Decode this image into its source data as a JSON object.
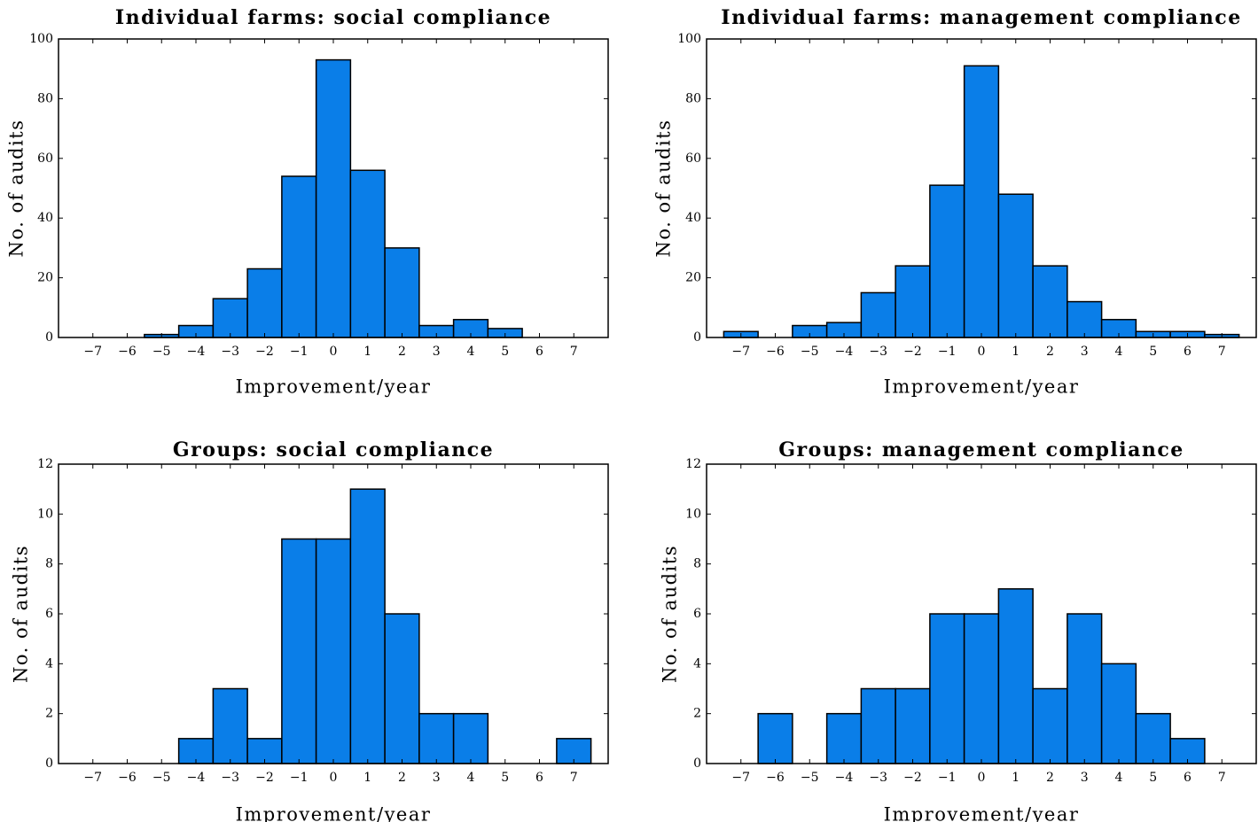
{
  "chart_data": [
    {
      "type": "bar",
      "title": "Individual farms: social compliance",
      "xlabel": "Improvement/year",
      "ylabel": "No. of audits",
      "x": [
        -7,
        -6,
        -5,
        -4,
        -3,
        -2,
        -1,
        0,
        1,
        2,
        3,
        4,
        5,
        6,
        7
      ],
      "values": [
        0,
        0,
        1,
        4,
        13,
        23,
        54,
        93,
        56,
        30,
        4,
        6,
        3,
        0,
        0
      ],
      "xticks": [
        "−7",
        "−6",
        "−5",
        "−4",
        "−3",
        "−2",
        "−1",
        "0",
        "1",
        "2",
        "3",
        "4",
        "5",
        "6",
        "7"
      ],
      "yticks": [
        "0",
        "20",
        "40",
        "60",
        "80",
        "100"
      ],
      "ylim": [
        0,
        100
      ],
      "xlim": [
        -8,
        8
      ]
    },
    {
      "type": "bar",
      "title": "Individual farms: management compliance",
      "xlabel": "Improvement/year",
      "ylabel": "No. of audits",
      "x": [
        -7,
        -6,
        -5,
        -4,
        -3,
        -2,
        -1,
        0,
        1,
        2,
        3,
        4,
        5,
        6,
        7
      ],
      "values": [
        2,
        0,
        4,
        5,
        15,
        24,
        51,
        91,
        48,
        24,
        12,
        6,
        2,
        2,
        1
      ],
      "xticks": [
        "−7",
        "−6",
        "−5",
        "−4",
        "−3",
        "−2",
        "−1",
        "0",
        "1",
        "2",
        "3",
        "4",
        "5",
        "6",
        "7"
      ],
      "yticks": [
        "0",
        "20",
        "40",
        "60",
        "80",
        "100"
      ],
      "ylim": [
        0,
        100
      ],
      "xlim": [
        -8,
        8
      ]
    },
    {
      "type": "bar",
      "title": "Groups: social compliance",
      "xlabel": "Improvement/year",
      "ylabel": "No. of audits",
      "x": [
        -7,
        -6,
        -5,
        -4,
        -3,
        -2,
        -1,
        0,
        1,
        2,
        3,
        4,
        5,
        6,
        7
      ],
      "values": [
        0,
        0,
        0,
        1,
        3,
        1,
        9,
        9,
        11,
        6,
        2,
        2,
        0,
        0,
        1
      ],
      "xticks": [
        "−7",
        "−6",
        "−5",
        "−4",
        "−3",
        "−2",
        "−1",
        "0",
        "1",
        "2",
        "3",
        "4",
        "5",
        "6",
        "7"
      ],
      "yticks": [
        "0",
        "2",
        "4",
        "6",
        "8",
        "10",
        "12"
      ],
      "ylim": [
        0,
        12
      ],
      "xlim": [
        -8,
        8
      ]
    },
    {
      "type": "bar",
      "title": "Groups: management compliance",
      "xlabel": "Improvement/year",
      "ylabel": "No. of audits",
      "x": [
        -7,
        -6,
        -5,
        -4,
        -3,
        -2,
        -1,
        0,
        1,
        2,
        3,
        4,
        5,
        6,
        7
      ],
      "values": [
        0,
        2,
        0,
        2,
        3,
        3,
        6,
        6,
        7,
        3,
        6,
        4,
        2,
        1,
        0
      ],
      "xticks": [
        "−7",
        "−6",
        "−5",
        "−4",
        "−3",
        "−2",
        "−1",
        "0",
        "1",
        "2",
        "3",
        "4",
        "5",
        "6",
        "7"
      ],
      "yticks": [
        "0",
        "2",
        "4",
        "6",
        "8",
        "10",
        "12"
      ],
      "ylim": [
        0,
        12
      ],
      "xlim": [
        -8,
        8
      ]
    }
  ],
  "colors": {
    "bar_fill": "#0a7ee8",
    "bar_edge": "#000000"
  }
}
